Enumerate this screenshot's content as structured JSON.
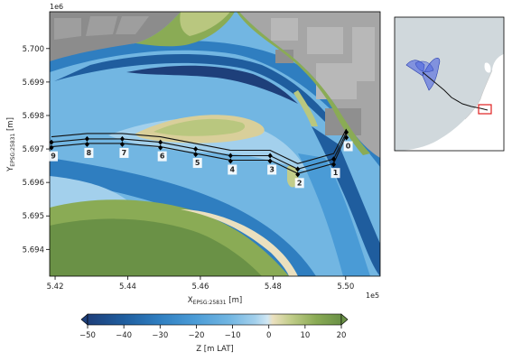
{
  "main_map": {
    "offset_y": "1e6",
    "offset_x": "1e5",
    "xlabel": {
      "main": "X",
      "sub": "EPSG:25831",
      "unit": " [m]"
    },
    "ylabel": {
      "main": "Y",
      "sub": "EPSG:25831",
      "unit": " [m]"
    },
    "xlim": [
      5.4185,
      5.5095
    ],
    "ylim": [
      5.6932,
      5.7011
    ],
    "xticks": [
      "5.42",
      "5.44",
      "5.46",
      "5.48",
      "5.50"
    ],
    "xtick_values": [
      5.42,
      5.44,
      5.46,
      5.48,
      5.5
    ],
    "yticks": [
      "5.694",
      "5.695",
      "5.696",
      "5.697",
      "5.698",
      "5.699",
      "5.700"
    ],
    "ytick_values": [
      5.694,
      5.695,
      5.696,
      5.697,
      5.698,
      5.699,
      5.7
    ],
    "waypoints": [
      {
        "label": "0",
        "x": 5.5002,
        "y": 5.6975
      },
      {
        "label": "1",
        "x": 5.4967,
        "y": 5.6967
      },
      {
        "label": "2",
        "x": 5.4868,
        "y": 5.6964
      },
      {
        "label": "3",
        "x": 5.4792,
        "y": 5.6968
      },
      {
        "label": "4",
        "x": 5.4683,
        "y": 5.6968
      },
      {
        "label": "5",
        "x": 5.4587,
        "y": 5.697
      },
      {
        "label": "6",
        "x": 5.449,
        "y": 5.6972
      },
      {
        "label": "7",
        "x": 5.4385,
        "y": 5.6973
      },
      {
        "label": "8",
        "x": 5.4288,
        "y": 5.6973
      },
      {
        "label": "9",
        "x": 5.419,
        "y": 5.6972
      }
    ]
  },
  "colorbar": {
    "label": "Z [m LAT]",
    "range": [
      -50,
      20
    ],
    "ticks": [
      "−50",
      "−40",
      "−30",
      "−20",
      "−10",
      "0",
      "10",
      "20"
    ],
    "tick_values": [
      -50,
      -40,
      -30,
      -20,
      -10,
      0,
      10,
      20
    ],
    "extend": "both",
    "colors": [
      "#1e3f7a",
      "#1f5d9e",
      "#2f7ec0",
      "#4a9bd6",
      "#72b6e2",
      "#a3d0ec",
      "#d1e7f3",
      "#ebe0bf",
      "#b9c77f",
      "#8aab55",
      "#6a9146"
    ]
  },
  "colors": {
    "land_gray": "#8c8c8c",
    "urban": "#a6a6a6",
    "inset_sea": "#d0d8dc",
    "inset_land": "#ffffff",
    "inset_fan": "#3f5ae0",
    "inset_box": "#e02020"
  }
}
